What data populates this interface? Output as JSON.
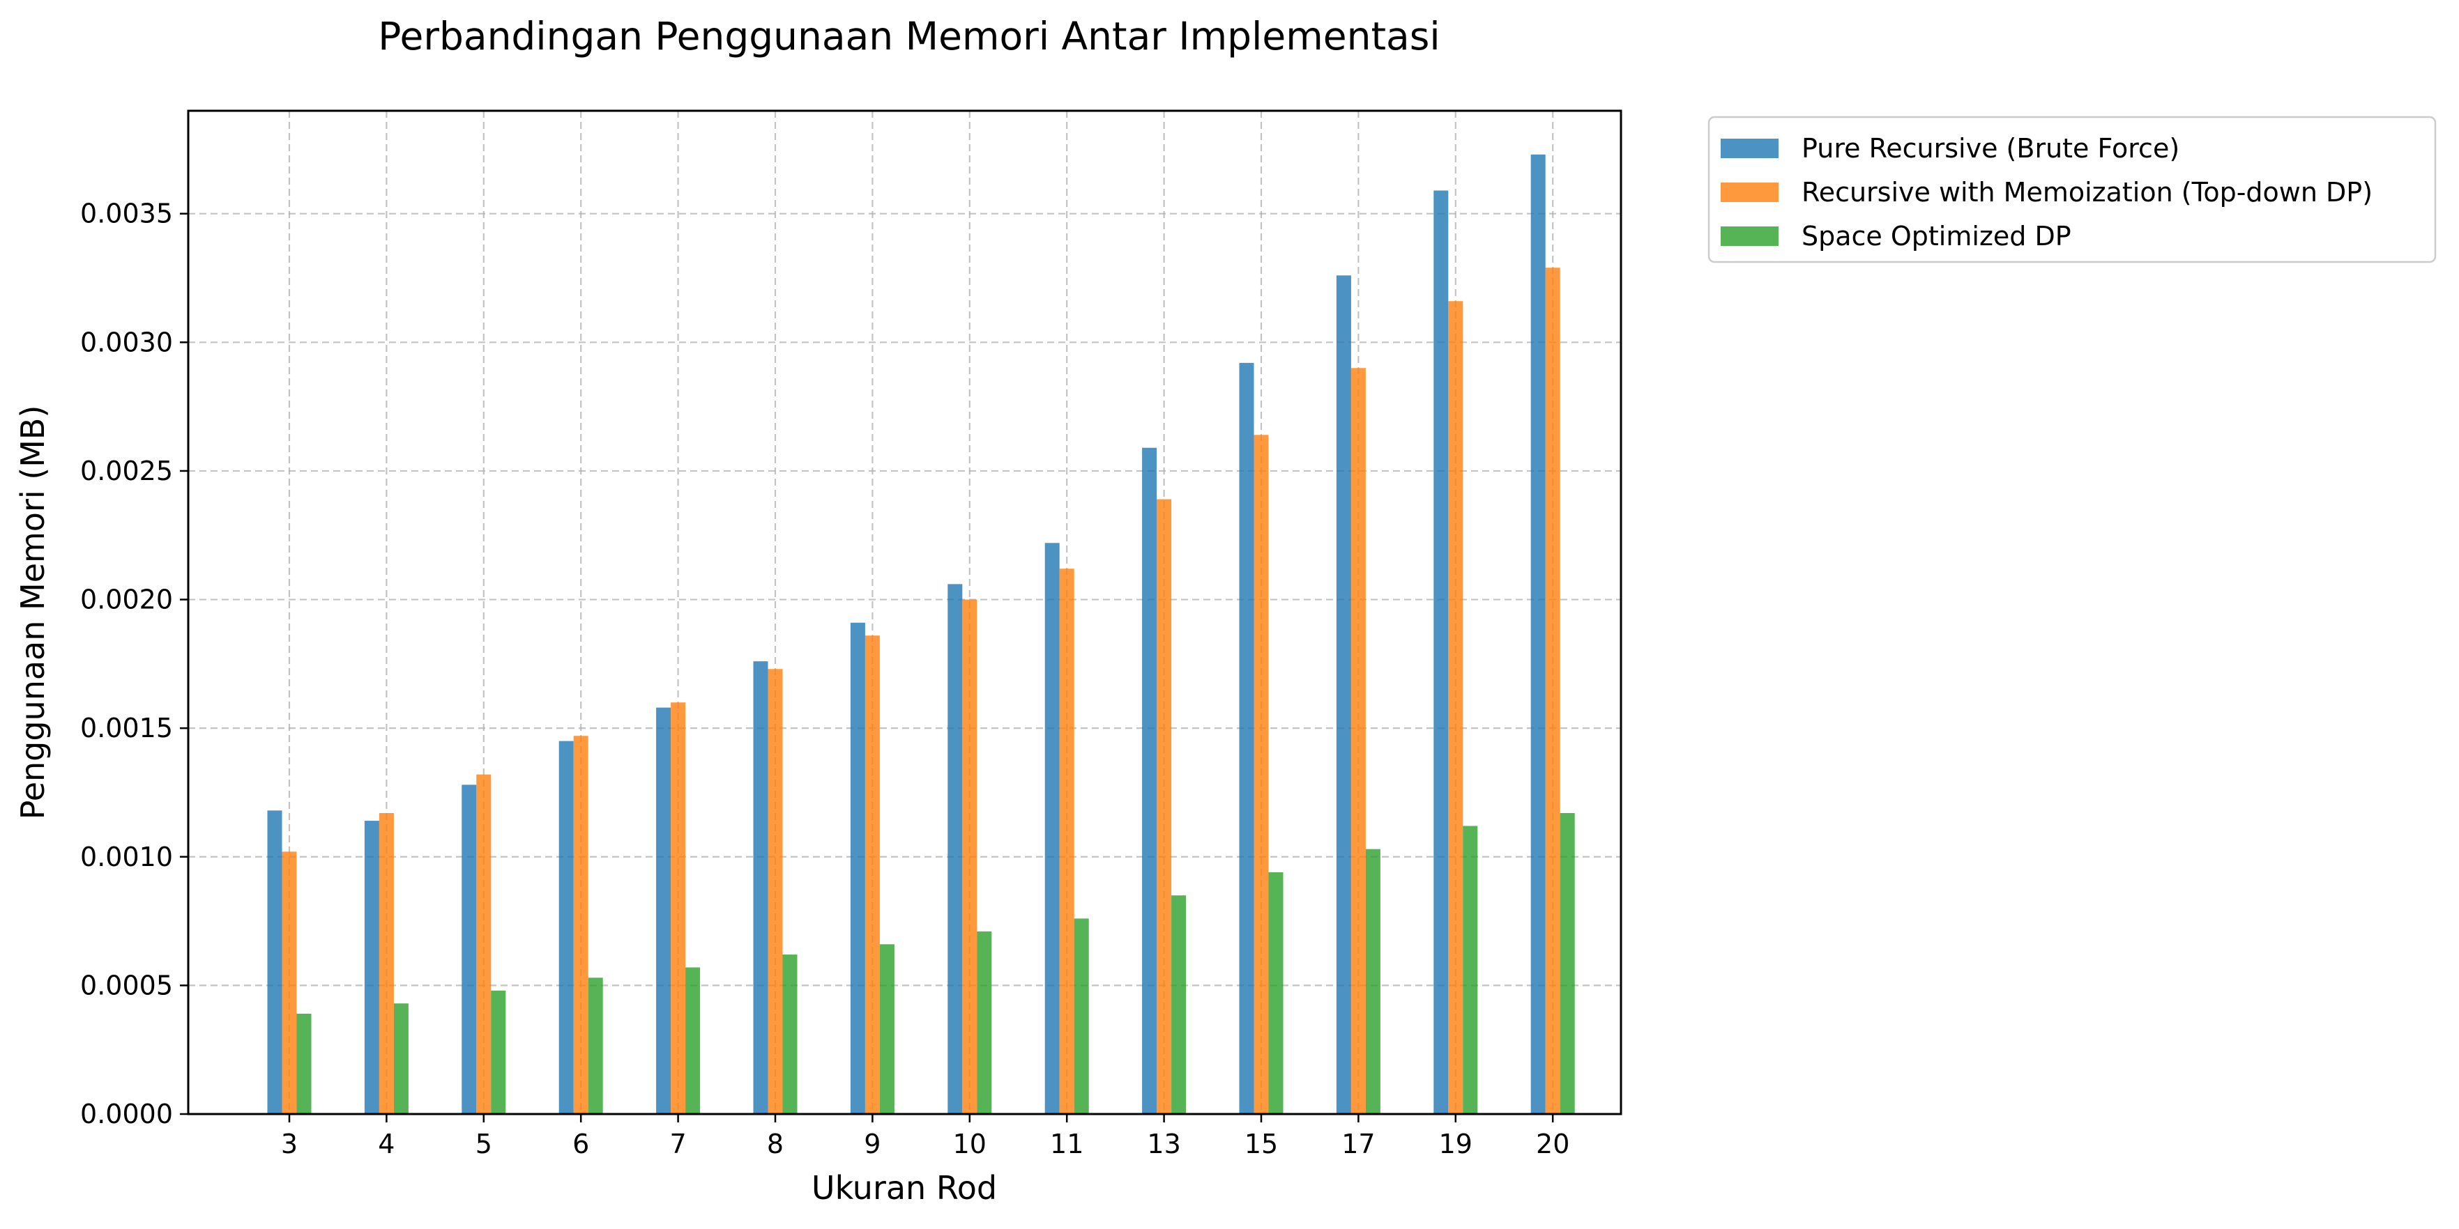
{
  "chart_data": {
    "type": "bar",
    "title": "Perbandingan Penggunaan Memori Antar Implementasi",
    "xlabel": "Ukuran Rod",
    "ylabel": "Penggunaan Memori (MB)",
    "categories": [
      "3",
      "4",
      "5",
      "6",
      "7",
      "8",
      "9",
      "10",
      "11",
      "13",
      "15",
      "17",
      "19",
      "20"
    ],
    "ylim": [
      0,
      0.0039
    ],
    "yticks": [
      "0.0000",
      "0.0005",
      "0.0010",
      "0.0015",
      "0.0020",
      "0.0025",
      "0.0030",
      "0.0035"
    ],
    "ytick_values": [
      0,
      0.0005,
      0.001,
      0.0015,
      0.002,
      0.0025,
      0.003,
      0.0035
    ],
    "grid": true,
    "legend_position": "outside-top-right",
    "series": [
      {
        "name": "Pure Recursive (Brute Force)",
        "color": "#1f77b4",
        "values": [
          0.00118,
          0.00114,
          0.00128,
          0.00145,
          0.00158,
          0.00176,
          0.00191,
          0.00206,
          0.00222,
          0.00259,
          0.00292,
          0.00326,
          0.00359,
          0.00373
        ]
      },
      {
        "name": "Recursive with Memoization (Top-down DP)",
        "color": "#ff7f0e",
        "values": [
          0.00102,
          0.00117,
          0.00132,
          0.00147,
          0.0016,
          0.00173,
          0.00186,
          0.002,
          0.00212,
          0.00239,
          0.00264,
          0.0029,
          0.00316,
          0.00329
        ]
      },
      {
        "name": "Space Optimized DP",
        "color": "#2ca02c",
        "values": [
          0.00039,
          0.00043,
          0.00048,
          0.00053,
          0.00057,
          0.00062,
          0.00066,
          0.00071,
          0.00076,
          0.00085,
          0.00094,
          0.00103,
          0.00112,
          0.00117
        ]
      }
    ]
  }
}
